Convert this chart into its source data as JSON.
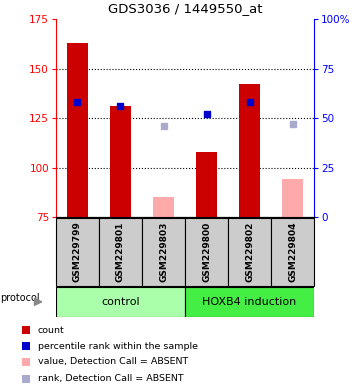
{
  "title": "GDS3036 / 1449550_at",
  "samples": [
    "GSM229799",
    "GSM229801",
    "GSM229803",
    "GSM229800",
    "GSM229802",
    "GSM229804"
  ],
  "ylim_left": [
    75,
    175
  ],
  "ylim_right": [
    0,
    100
  ],
  "yticks_left": [
    75,
    100,
    125,
    150,
    175
  ],
  "yticks_right": [
    0,
    25,
    50,
    75,
    100
  ],
  "yticklabels_right": [
    "0",
    "25",
    "50",
    "75",
    "100%"
  ],
  "red_bars": [
    163,
    131,
    null,
    108,
    142,
    null
  ],
  "pink_bars": [
    null,
    null,
    85,
    null,
    null,
    94
  ],
  "blue_squares": [
    133,
    131,
    null,
    127,
    133,
    null
  ],
  "light_blue_squares": [
    null,
    null,
    121,
    null,
    null,
    122
  ],
  "red_color": "#cc0000",
  "pink_color": "#ffaaaa",
  "blue_color": "#0000cc",
  "light_blue_color": "#aaaacc",
  "bg_xticklabels": "#cccccc",
  "bg_control": "#aaffaa",
  "bg_hoxb4": "#44ee44",
  "group_label_control": "control",
  "group_label_hoxb4": "HOXB4 induction",
  "protocol_label": "protocol",
  "legend_items": [
    {
      "color": "#cc0000",
      "label": "count"
    },
    {
      "color": "#0000cc",
      "label": "percentile rank within the sample"
    },
    {
      "color": "#ffaaaa",
      "label": "value, Detection Call = ABSENT"
    },
    {
      "color": "#aaaacc",
      "label": "rank, Detection Call = ABSENT"
    }
  ]
}
